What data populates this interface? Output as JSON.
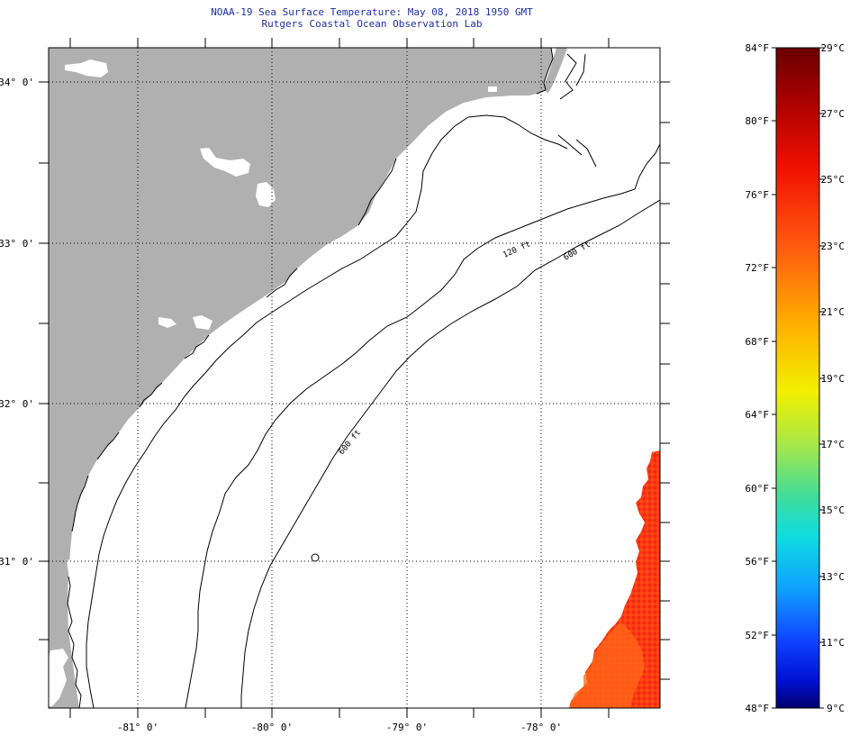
{
  "header": {
    "line1": "NOAA-19 Sea Surface Temperature:  May 08, 2018 1950 GMT",
    "line2": "Rutgers Coastal Ocean Observation Lab"
  },
  "map": {
    "x_labels": [
      "-81° 0'",
      "-80° 0'",
      "-79° 0'",
      "-78° 0'"
    ],
    "y_labels": [
      "34° 0'",
      "33° 0'",
      "32° 0'",
      "31° 0'"
    ],
    "contour_labels": [
      "120 ft",
      "600 ft",
      "600 ft"
    ],
    "colors": {
      "land": "#b0b0b0",
      "ocean": "#ffffff",
      "contour": "#000000",
      "sst_warm": "#ff3010",
      "sst_mid": "#ff6a18"
    }
  },
  "colorbar": {
    "fahrenheit_labels": [
      "84°F",
      "80°F",
      "76°F",
      "72°F",
      "68°F",
      "64°F",
      "60°F",
      "56°F",
      "52°F",
      "48°F"
    ],
    "celsius_labels": [
      "29°C",
      "27°C",
      "25°C",
      "23°C",
      "21°C",
      "19°C",
      "17°C",
      "15°C",
      "13°C",
      "11°C",
      "9°C"
    ],
    "colors": [
      "#6a0000",
      "#a80000",
      "#e00000",
      "#ff3000",
      "#ff7000",
      "#ffb000",
      "#ffee00",
      "#c8f000",
      "#70e060",
      "#20d8d0",
      "#00c8ff",
      "#0070ff",
      "#0020ff",
      "#0000c8",
      "#000080"
    ]
  }
}
